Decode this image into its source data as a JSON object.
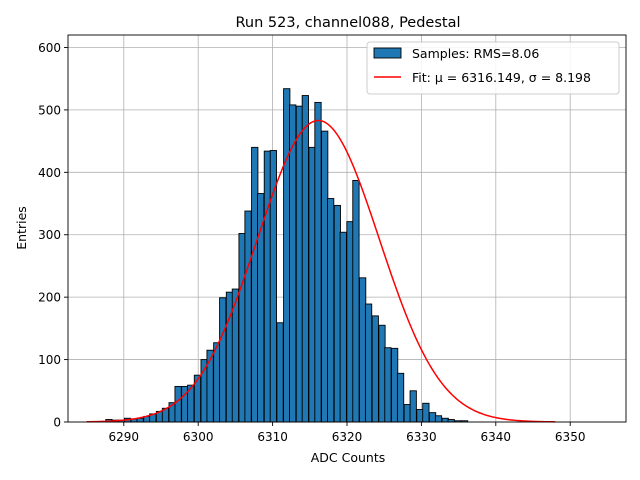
{
  "chart_data": {
    "type": "bar",
    "title": "Run 523, channel088, Pedestal",
    "xlabel": "ADC Counts",
    "ylabel": "Entries",
    "xlim": [
      6282.5,
      6357.5
    ],
    "ylim": [
      0,
      620
    ],
    "xticks": [
      6290,
      6300,
      6310,
      6320,
      6330,
      6340,
      6350
    ],
    "yticks": [
      0,
      100,
      200,
      300,
      400,
      500,
      600
    ],
    "grid": true,
    "legend_position": "top-right",
    "bin_width": 0.85,
    "bins": [
      {
        "x": 6288.0,
        "y": 4
      },
      {
        "x": 6288.8,
        "y": 3
      },
      {
        "x": 6289.7,
        "y": 3
      },
      {
        "x": 6290.5,
        "y": 6
      },
      {
        "x": 6291.4,
        "y": 5
      },
      {
        "x": 6292.2,
        "y": 6
      },
      {
        "x": 6293.1,
        "y": 9
      },
      {
        "x": 6293.9,
        "y": 13
      },
      {
        "x": 6294.8,
        "y": 17
      },
      {
        "x": 6295.6,
        "y": 22
      },
      {
        "x": 6296.5,
        "y": 31
      },
      {
        "x": 6297.3,
        "y": 57
      },
      {
        "x": 6298.2,
        "y": 57
      },
      {
        "x": 6299.0,
        "y": 59
      },
      {
        "x": 6299.9,
        "y": 75
      },
      {
        "x": 6300.8,
        "y": 100
      },
      {
        "x": 6301.6,
        "y": 115
      },
      {
        "x": 6302.5,
        "y": 127
      },
      {
        "x": 6303.3,
        "y": 199
      },
      {
        "x": 6304.2,
        "y": 208
      },
      {
        "x": 6305.0,
        "y": 213
      },
      {
        "x": 6305.9,
        "y": 302
      },
      {
        "x": 6306.7,
        "y": 338
      },
      {
        "x": 6307.6,
        "y": 440
      },
      {
        "x": 6308.4,
        "y": 366
      },
      {
        "x": 6309.3,
        "y": 434
      },
      {
        "x": 6310.1,
        "y": 435
      },
      {
        "x": 6311.0,
        "y": 159
      },
      {
        "x": 6311.9,
        "y": 534
      },
      {
        "x": 6312.7,
        "y": 508
      },
      {
        "x": 6313.6,
        "y": 506
      },
      {
        "x": 6314.4,
        "y": 523
      },
      {
        "x": 6315.3,
        "y": 440
      },
      {
        "x": 6316.1,
        "y": 512
      },
      {
        "x": 6317.0,
        "y": 466
      },
      {
        "x": 6317.8,
        "y": 358
      },
      {
        "x": 6318.7,
        "y": 347
      },
      {
        "x": 6319.5,
        "y": 304
      },
      {
        "x": 6320.4,
        "y": 321
      },
      {
        "x": 6321.2,
        "y": 387
      },
      {
        "x": 6322.1,
        "y": 231
      },
      {
        "x": 6322.9,
        "y": 189
      },
      {
        "x": 6323.8,
        "y": 170
      },
      {
        "x": 6324.7,
        "y": 155
      },
      {
        "x": 6325.5,
        "y": 119
      },
      {
        "x": 6326.4,
        "y": 118
      },
      {
        "x": 6327.2,
        "y": 78
      },
      {
        "x": 6328.1,
        "y": 28
      },
      {
        "x": 6328.9,
        "y": 50
      },
      {
        "x": 6329.8,
        "y": 20
      },
      {
        "x": 6330.6,
        "y": 30
      },
      {
        "x": 6331.5,
        "y": 15
      },
      {
        "x": 6332.3,
        "y": 10
      },
      {
        "x": 6333.2,
        "y": 6
      },
      {
        "x": 6334.0,
        "y": 4
      },
      {
        "x": 6334.9,
        "y": 2
      },
      {
        "x": 6335.8,
        "y": 2
      }
    ],
    "series": [
      {
        "name": "Samples: RMS=8.06",
        "kind": "histogram",
        "color": "#1f77b4",
        "edgecolor": "#000000"
      },
      {
        "name": "Fit: μ = 6316.149, σ = 8.198",
        "kind": "gaussian-fit",
        "color": "#ff0000",
        "mu": 6316.149,
        "sigma": 8.198,
        "amplitude": 483,
        "x_range": [
          6285,
          6348
        ]
      }
    ]
  }
}
